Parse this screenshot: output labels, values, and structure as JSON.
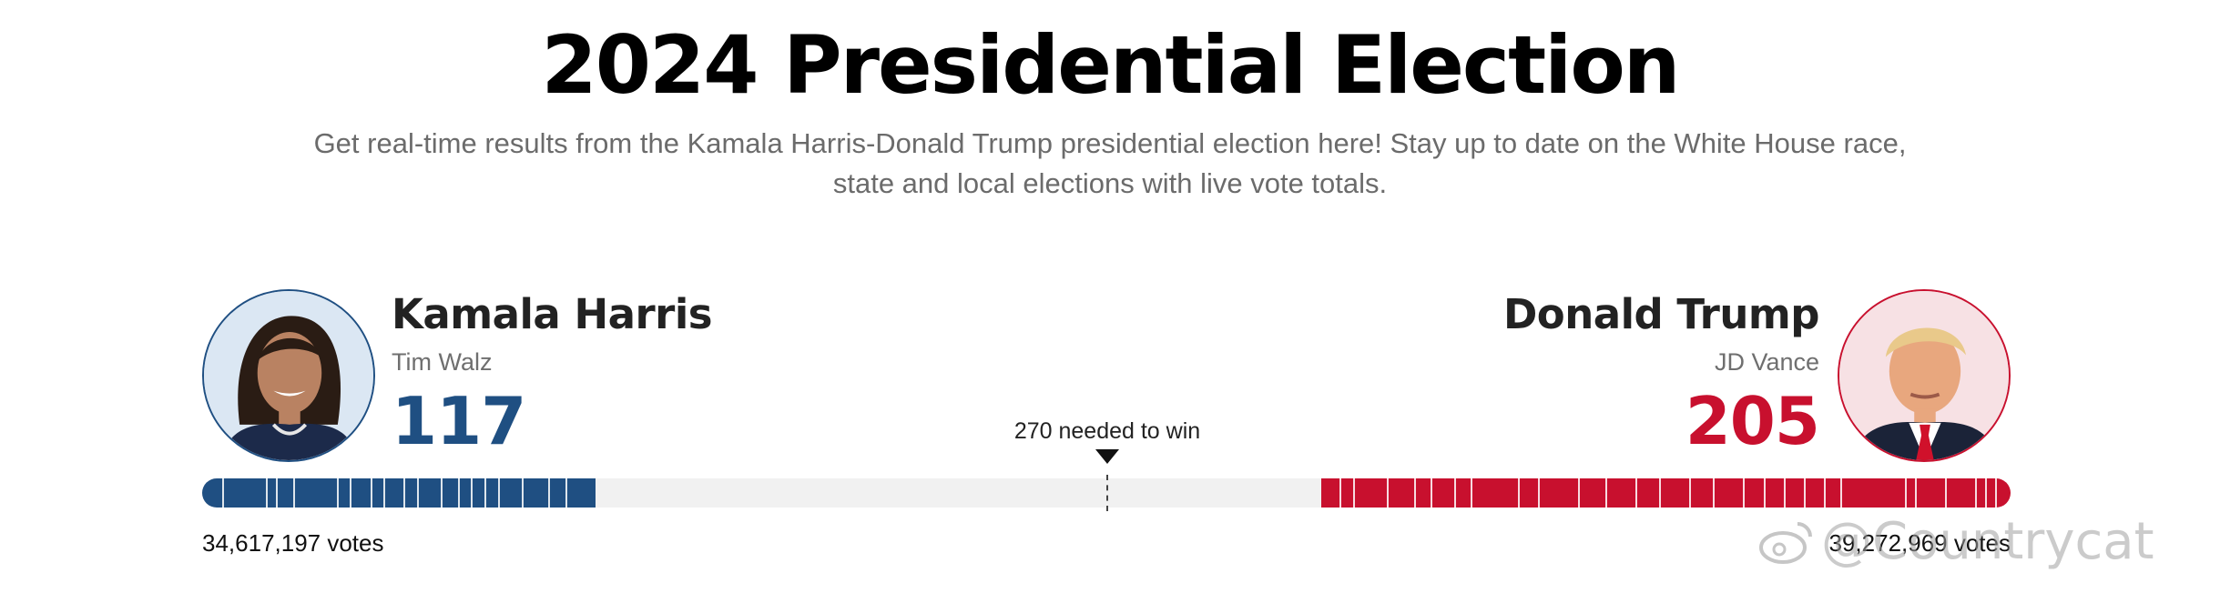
{
  "page": {
    "title": "2024 Presidential Election",
    "subtitle_line1": "Get real-time results from the Kamala Harris-Donald Trump presidential election here! Stay up to date on the White House race,",
    "subtitle_line2": "state and local elections with live vote totals."
  },
  "threshold": {
    "label": "270 needed to win",
    "value": 270,
    "total": 538
  },
  "candidates": {
    "dem": {
      "name": "Kamala Harris",
      "running_mate": "Tim Walz",
      "electoral_votes": "117",
      "ev_value": 117,
      "popular_votes": "34,617,197 votes",
      "color": "#1f4f82",
      "avatar_icon": "kamala-harris-portrait"
    },
    "rep": {
      "name": "Donald Trump",
      "running_mate": "JD Vance",
      "electoral_votes": "205",
      "ev_value": 205,
      "popular_votes": "39,272,969 votes",
      "color": "#c8102e",
      "avatar_icon": "donald-trump-portrait"
    }
  },
  "bar": {
    "background": "#f1f1f1",
    "dem_state_bounds": [
      6,
      19,
      22,
      27,
      40,
      44,
      50,
      54,
      60,
      64,
      71,
      76,
      80,
      84,
      88,
      95,
      103,
      108
    ],
    "rep_state_bounds": [
      4,
      7,
      10,
      19,
      28,
      31,
      50,
      55,
      61,
      67,
      73,
      79,
      88,
      95,
      104,
      111,
      120,
      128,
      140,
      146,
      160,
      165,
      172,
      177,
      185,
      195,
      199
    ]
  },
  "watermark": {
    "text": "@Countrycat"
  }
}
